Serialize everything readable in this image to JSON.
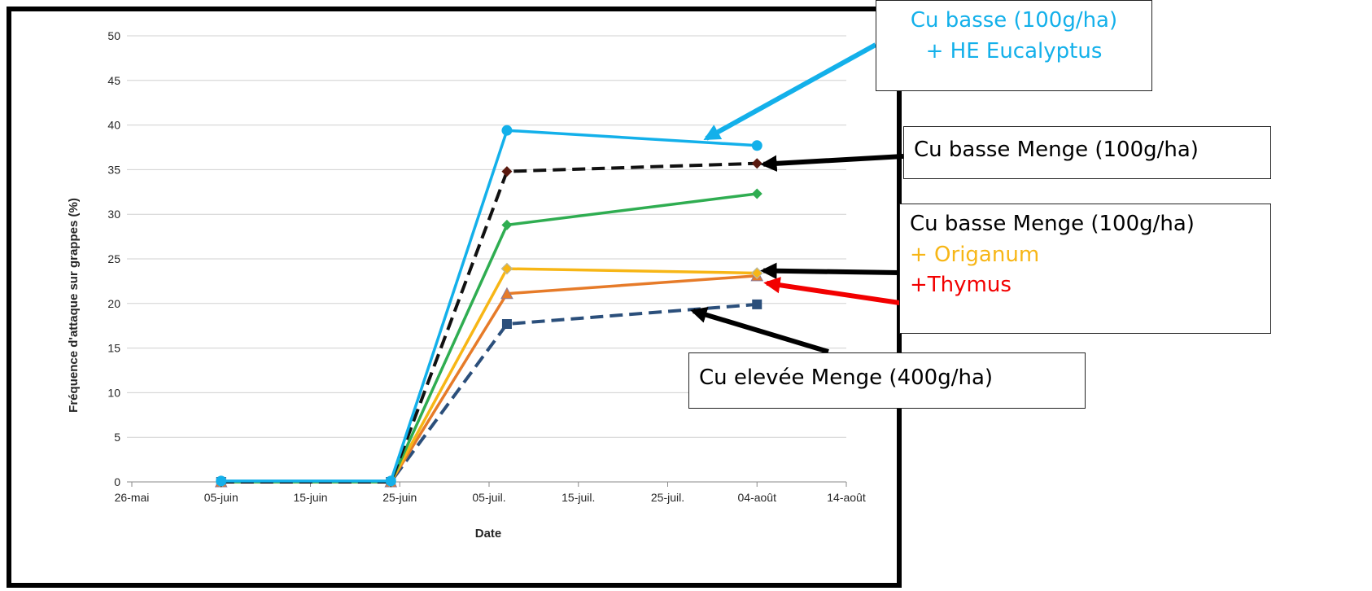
{
  "colors": {
    "eucalyptus": "#13b0ea",
    "menge_low": "#111111",
    "green": "#2fad51",
    "origanum": "#f7b616",
    "thymus_line": "#e67b29",
    "elevee": "#2b4f7b",
    "thymus_text": "#f20000",
    "arrow_black": "#000000",
    "arrow_red": "#f20000"
  },
  "chart_data": {
    "type": "line",
    "xlabel": "Date",
    "ylabel": "Fréquence d'attaque sur grappes (%)",
    "x_ticks": [
      "26-mai",
      "05-juin",
      "15-juin",
      "25-juin",
      "05-juil.",
      "15-juil.",
      "25-juil.",
      "04-août",
      "14-août"
    ],
    "x_tick_dates": [
      "2020-05-26",
      "2020-06-05",
      "2020-06-15",
      "2020-06-25",
      "2020-07-05",
      "2020-07-15",
      "2020-07-25",
      "2020-08-04",
      "2020-08-14"
    ],
    "ylim": [
      0,
      50
    ],
    "y_ticks": [
      0,
      5,
      10,
      15,
      20,
      25,
      30,
      35,
      40,
      45,
      50
    ],
    "grid": "horizontal",
    "series": [
      {
        "name": "Cu basse (100g/ha) + HE Eucalyptus",
        "color": "#13b0ea",
        "dash": "solid",
        "marker": "circle",
        "points": [
          [
            "2020-06-05",
            0.1
          ],
          [
            "2020-06-24",
            0.1
          ],
          [
            "2020-07-07",
            39.4
          ],
          [
            "2020-08-04",
            37.7
          ]
        ]
      },
      {
        "name": "Cu basse Menge (100g/ha)",
        "color": "#111111",
        "dash": "dashed",
        "marker": "diamond",
        "points": [
          [
            "2020-06-05",
            0
          ],
          [
            "2020-06-24",
            0
          ],
          [
            "2020-07-07",
            34.8
          ],
          [
            "2020-08-04",
            35.7
          ]
        ]
      },
      {
        "color": "#2fad51",
        "dash": "solid",
        "marker": "diamond",
        "points": [
          [
            "2020-06-05",
            0
          ],
          [
            "2020-06-24",
            0
          ],
          [
            "2020-07-07",
            28.8
          ],
          [
            "2020-08-04",
            32.3
          ]
        ]
      },
      {
        "name": "Cu basse Menge (100g/ha) + Origanum",
        "color": "#f7b616",
        "dash": "solid",
        "marker": "diamond",
        "points": [
          [
            "2020-06-05",
            0
          ],
          [
            "2020-06-24",
            0
          ],
          [
            "2020-07-07",
            23.9
          ],
          [
            "2020-08-04",
            23.4
          ]
        ]
      },
      {
        "name": "Cu basse Menge (100g/ha) +Thymus",
        "color": "#e67b29",
        "dash": "solid",
        "marker": "triangle",
        "points": [
          [
            "2020-06-05",
            0
          ],
          [
            "2020-06-24",
            0
          ],
          [
            "2020-07-07",
            21.1
          ],
          [
            "2020-08-04",
            23.1
          ]
        ]
      },
      {
        "name": "Cu elevée Menge (400g/ha)",
        "color": "#2b4f7b",
        "dash": "dashed",
        "marker": "square",
        "points": [
          [
            "2020-06-05",
            0
          ],
          [
            "2020-06-24",
            0
          ],
          [
            "2020-07-07",
            17.7
          ],
          [
            "2020-08-04",
            19.9
          ]
        ]
      }
    ]
  },
  "callouts": {
    "eucalyptus": {
      "line1": "Cu basse (100g/ha)",
      "line2": "+ HE Eucalyptus"
    },
    "menge": {
      "line1": "Cu basse Menge (100g/ha)"
    },
    "origanum": {
      "line1": "Cu basse Menge (100g/ha)",
      "line2": "+ Origanum",
      "line3": "+Thymus"
    },
    "elevee": {
      "line1": "Cu elevée Menge (400g/ha)"
    }
  }
}
